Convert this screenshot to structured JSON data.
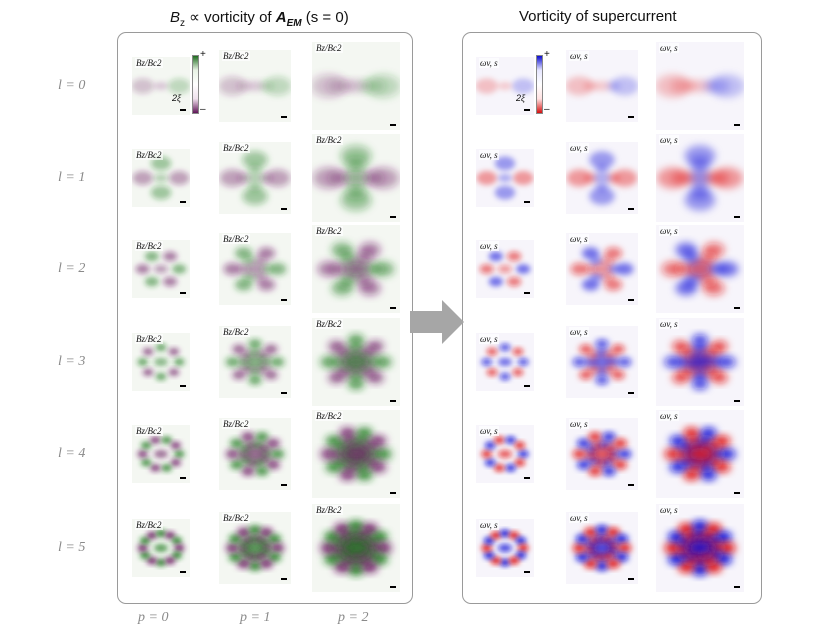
{
  "left_panel": {
    "title_parts": [
      "B",
      "z",
      " ∝ vorticity of ",
      "A",
      "EM",
      " (s = 0)"
    ],
    "panel_label": "B",
    "panel_sub": "z",
    "panel_label_full": "Bz/Bc2",
    "colorbar_plus": "+",
    "colorbar_minus": "–",
    "scale_label": "2ξ",
    "colors": {
      "positive": "#1f7a1f",
      "negative": "#6b1a62"
    }
  },
  "right_panel": {
    "title": "Vorticity of supercurrent",
    "panel_label_full": "ωv, s",
    "colorbar_plus": "+",
    "colorbar_minus": "–",
    "scale_label": "2ξ",
    "colors": {
      "positive": "#0a0ad8",
      "negative": "#e01010"
    }
  },
  "row_labels": [
    "l = 0",
    "l = 1",
    "l = 2",
    "l = 3",
    "l = 4",
    "l = 5"
  ],
  "col_labels": [
    "p = 0",
    "p = 1",
    "p = 2"
  ],
  "modes": [
    {
      "l": 0,
      "p": 0
    },
    {
      "l": 0,
      "p": 1
    },
    {
      "l": 0,
      "p": 2
    },
    {
      "l": 1,
      "p": 0
    },
    {
      "l": 1,
      "p": 1
    },
    {
      "l": 1,
      "p": 2
    },
    {
      "l": 2,
      "p": 0
    },
    {
      "l": 2,
      "p": 1
    },
    {
      "l": 2,
      "p": 2
    },
    {
      "l": 3,
      "p": 0
    },
    {
      "l": 3,
      "p": 1
    },
    {
      "l": 3,
      "p": 2
    },
    {
      "l": 4,
      "p": 0
    },
    {
      "l": 4,
      "p": 1
    },
    {
      "l": 4,
      "p": 2
    },
    {
      "l": 5,
      "p": 0
    },
    {
      "l": 5,
      "p": 1
    },
    {
      "l": 5,
      "p": 2
    }
  ]
}
